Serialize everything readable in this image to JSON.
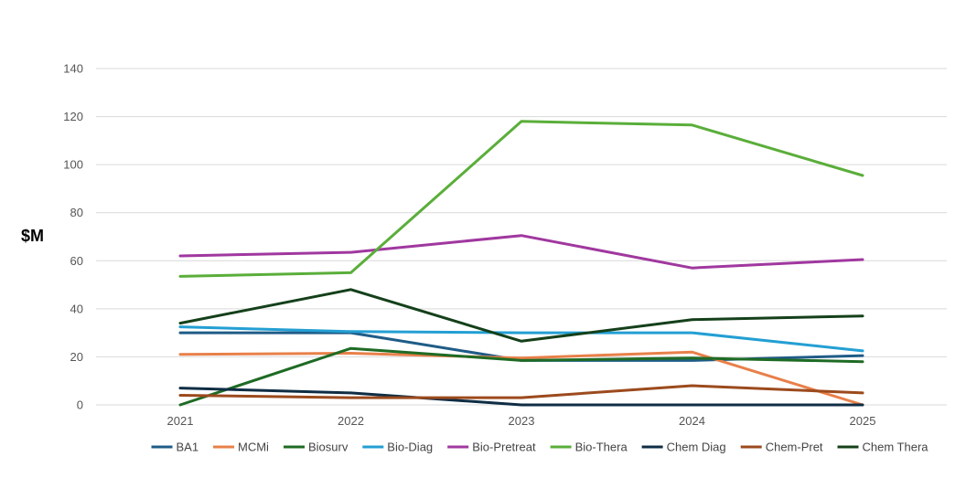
{
  "chart_data": {
    "type": "line",
    "title": "",
    "xlabel": "",
    "ylabel": "$M",
    "ylim": [
      0,
      140
    ],
    "yticks": [
      0,
      20,
      40,
      60,
      80,
      100,
      120,
      140
    ],
    "grid": "horizontal",
    "legend_position": "bottom",
    "categories": [
      "2021",
      "2022",
      "2023",
      "2024",
      "2025"
    ],
    "series": [
      {
        "name": "BA1",
        "color": "#1f5c87",
        "values": [
          30,
          30,
          18.5,
          18.5,
          20.5
        ]
      },
      {
        "name": "MCMi",
        "color": "#e8804a",
        "values": [
          21,
          21.5,
          19.5,
          22,
          0
        ]
      },
      {
        "name": "Biosurv",
        "color": "#1e6b24",
        "values": [
          0,
          23.5,
          18.5,
          19.5,
          18
        ]
      },
      {
        "name": "Bio-Diag",
        "color": "#239fd3",
        "values": [
          32.5,
          30.5,
          30,
          30,
          22.5
        ]
      },
      {
        "name": "Bio-Pretreat",
        "color": "#a0389f",
        "values": [
          62,
          63.5,
          70.5,
          57,
          60.5
        ]
      },
      {
        "name": "Bio-Thera",
        "color": "#5aae3a",
        "values": [
          53.5,
          55,
          118,
          116.5,
          95.5
        ]
      },
      {
        "name": "Chem Diag",
        "color": "#0f2d44",
        "values": [
          7,
          5,
          0,
          0,
          0
        ]
      },
      {
        "name": "Chem-Pret",
        "color": "#9c4a1d",
        "values": [
          4,
          3,
          3,
          8,
          5
        ]
      },
      {
        "name": "Chem Thera",
        "color": "#14401a",
        "values": [
          34,
          48,
          26.5,
          35.5,
          37
        ]
      }
    ]
  }
}
